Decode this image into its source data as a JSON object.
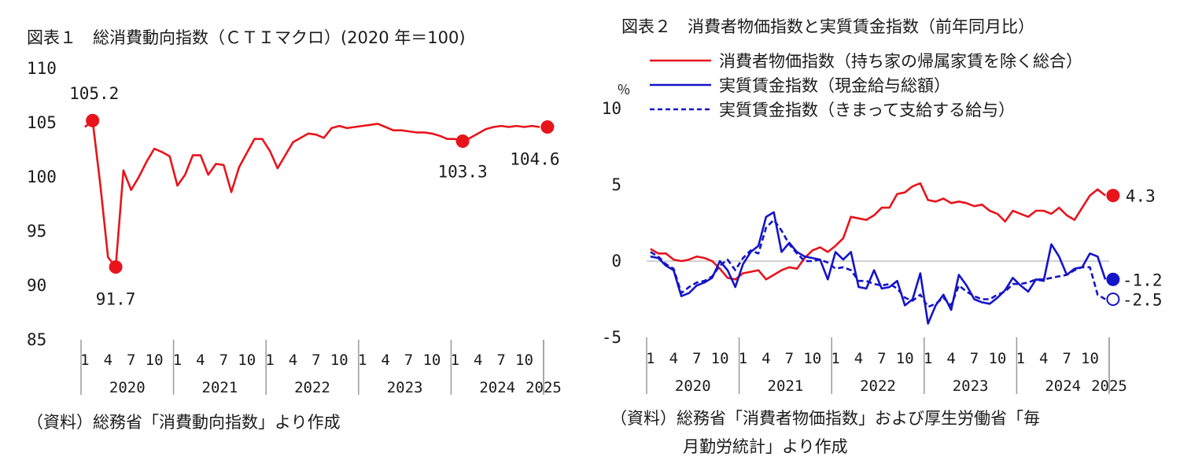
{
  "chart1": {
    "title": "図表１　総消費動向指数（ＣＴＩマクロ）(2020 年＝100)",
    "source_note": "（資料）総務省「消費動向指数」より作成"
  },
  "chart2": {
    "title": "図表２　消費者物価指数と実質賃金指数（前年同月比）",
    "unit_label": "％",
    "source_note_line1": "（資料）総務省「消費者物価指数」および厚生労働省「毎",
    "source_note_line2": "月勤労統計」より作成"
  },
  "chart_data": [
    {
      "type": "line",
      "title": "図表１　総消費動向指数（ＣＴＩマクロ）(2020 年＝100)",
      "ylim": [
        85,
        110
      ],
      "yticks": [
        "110",
        "105",
        "100",
        "95",
        "90",
        "85"
      ],
      "month_ticks": [
        "1",
        "4",
        "7",
        "10"
      ],
      "years": [
        "2020",
        "2021",
        "2022",
        "2023",
        "2024",
        "2025"
      ],
      "start": "2020-01",
      "grid": false,
      "series": [
        {
          "color": "#e8141c",
          "values": [
            104.6,
            105.2,
            99.3,
            92.6,
            91.7,
            100.6,
            98.8,
            100.0,
            101.4,
            102.6,
            102.3,
            101.9,
            99.2,
            100.2,
            102.0,
            102.0,
            100.2,
            101.2,
            101.1,
            98.6,
            100.9,
            102.2,
            103.5,
            103.5,
            102.4,
            100.8,
            102.0,
            103.2,
            103.6,
            104.0,
            103.9,
            103.6,
            104.5,
            104.7,
            104.5,
            104.6,
            104.7,
            104.8,
            104.9,
            104.6,
            104.3,
            104.3,
            104.2,
            104.1,
            104.1,
            104.0,
            103.8,
            103.5,
            103.5,
            103.3,
            103.6,
            104.0,
            104.4,
            104.6,
            104.7,
            104.6,
            104.7,
            104.6,
            104.7,
            104.6
          ]
        }
      ],
      "annotations": [
        {
          "label": "105.2",
          "x": "2020-02",
          "y": 105.2
        },
        {
          "label": "91.7",
          "x": "2020-05",
          "y": 91.7
        },
        {
          "label": "103.3",
          "x": "2024-02",
          "y": 103.3
        },
        {
          "label": "104.6",
          "x": "2025-01",
          "y": 104.6
        }
      ]
    },
    {
      "type": "line",
      "title": "図表２　消費者物価指数と実質賃金指数（前年同月比）",
      "ylabel": "％",
      "ylim": [
        -5,
        10
      ],
      "yticks": [
        "10",
        "5",
        "0",
        "-5"
      ],
      "month_ticks": [
        "1",
        "4",
        "7",
        "10"
      ],
      "years": [
        "2020",
        "2021",
        "2022",
        "2023",
        "2024",
        "2025"
      ],
      "start": "2020-01",
      "grid": false,
      "zero_line": true,
      "legend_position": "top",
      "series": [
        {
          "name": "消費者物価指数（持ち家の帰属家賃を除く総合）",
          "color": "#e8141c",
          "style": "solid",
          "values": [
            0.8,
            0.5,
            0.5,
            0.1,
            0.0,
            0.1,
            0.3,
            0.2,
            0.0,
            -0.5,
            -1.1,
            -1.2,
            -0.8,
            -0.7,
            -0.6,
            -1.2,
            -0.9,
            -0.6,
            -0.4,
            -0.5,
            0.2,
            0.7,
            0.9,
            0.6,
            1.0,
            1.5,
            2.9,
            2.8,
            2.7,
            3.0,
            3.5,
            3.5,
            4.4,
            4.5,
            4.9,
            5.1,
            4.0,
            3.9,
            4.1,
            3.8,
            3.9,
            3.8,
            3.6,
            3.7,
            3.3,
            3.1,
            2.6,
            3.3,
            3.1,
            2.9,
            3.3,
            3.3,
            3.1,
            3.5,
            3.0,
            2.7,
            3.5,
            4.3,
            4.7,
            4.3
          ]
        },
        {
          "name": "実質賃金指数（現金給与総額）",
          "color": "#1414c8",
          "style": "solid",
          "values": [
            0.3,
            0.2,
            -0.3,
            -0.6,
            -2.3,
            -2.1,
            -1.6,
            -1.4,
            -1.1,
            0.0,
            -0.6,
            -1.7,
            -0.2,
            0.6,
            1.0,
            2.9,
            3.2,
            0.6,
            1.2,
            0.6,
            0.3,
            0.2,
            0.1,
            -1.2,
            0.6,
            0.1,
            0.6,
            -1.7,
            -1.8,
            -0.6,
            -1.8,
            -1.7,
            -1.3,
            -2.9,
            -2.5,
            -0.8,
            -4.1,
            -2.9,
            -2.2,
            -3.2,
            -0.9,
            -1.6,
            -2.5,
            -2.7,
            -2.8,
            -2.4,
            -1.9,
            -1.1,
            -1.6,
            -2.0,
            -1.2,
            -1.3,
            1.1,
            0.3,
            -0.9,
            -0.5,
            -0.4,
            0.5,
            0.3,
            -1.2
          ]
        },
        {
          "name": "実質賃金指数（きまって支給する給与）",
          "color": "#1414c8",
          "style": "dashed",
          "values": [
            0.6,
            0.3,
            -0.2,
            -0.5,
            -2.1,
            -1.7,
            -1.4,
            -1.3,
            -1.0,
            -0.3,
            0.1,
            -0.6,
            0.2,
            0.7,
            0.5,
            2.2,
            2.7,
            2.0,
            1.1,
            0.5,
            0.0,
            0.0,
            0.1,
            -0.1,
            -0.5,
            -0.4,
            -0.6,
            -1.3,
            -1.3,
            -1.5,
            -1.6,
            -1.5,
            -1.8,
            -2.4,
            -2.6,
            -2.2,
            -3.0,
            -2.8,
            -2.4,
            -2.9,
            -1.6,
            -2.0,
            -2.3,
            -2.5,
            -2.5,
            -2.2,
            -2.0,
            -1.5,
            -1.5,
            -1.4,
            -1.2,
            -1.2,
            -1.1,
            -1.0,
            -0.9,
            -0.6,
            -0.4,
            -0.4,
            -2.2,
            -2.5
          ]
        }
      ],
      "annotations": [
        {
          "label": "4.3",
          "x": "2025-01",
          "y": 4.3
        },
        {
          "label": "-1.2",
          "x": "2025-01",
          "y": -1.2
        },
        {
          "label": "-2.5",
          "x": "2025-01",
          "y": -2.5
        }
      ]
    }
  ]
}
